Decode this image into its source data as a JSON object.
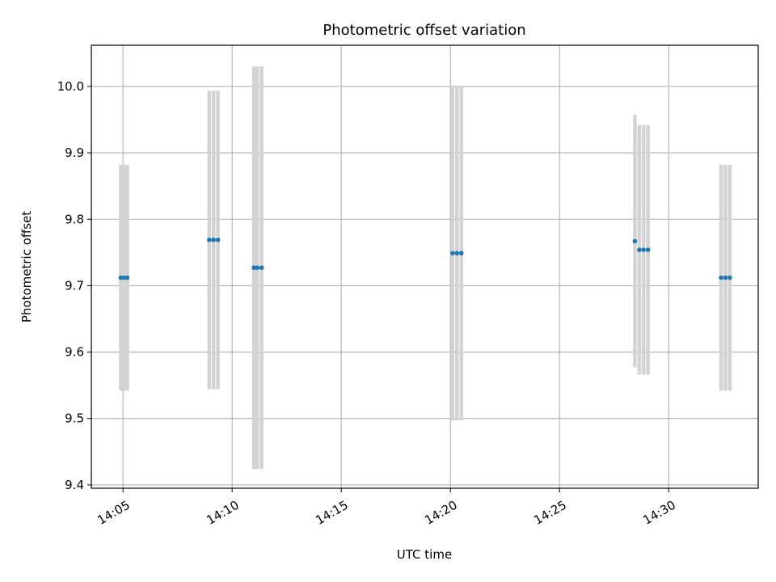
{
  "chart_data": {
    "type": "scatter",
    "title": "Photometric offset variation",
    "xlabel": "UTC time",
    "ylabel": "Photometric offset",
    "x_ticks": [
      "14:05",
      "14:10",
      "14:15",
      "14:20",
      "14:25",
      "14:30"
    ],
    "x_tick_minutes": [
      5,
      10,
      15,
      20,
      25,
      30
    ],
    "y_ticks": [
      "9.4",
      "9.5",
      "9.6",
      "9.7",
      "9.8",
      "9.9",
      "10.0"
    ],
    "y_tick_values": [
      9.4,
      9.5,
      9.6,
      9.7,
      9.8,
      9.9,
      10.0
    ],
    "xlim_minutes_after_14_00": [
      3.55,
      34.1
    ],
    "ylim": [
      9.395,
      10.062
    ],
    "grid": true,
    "marker_color": "#1f77b4",
    "errorbar_color": "#d3d3d3",
    "points": [
      {
        "t_min": 4.9,
        "y": 9.712,
        "err": 0.17
      },
      {
        "t_min": 5.05,
        "y": 9.712,
        "err": 0.17
      },
      {
        "t_min": 5.2,
        "y": 9.712,
        "err": 0.17
      },
      {
        "t_min": 8.95,
        "y": 9.769,
        "err": 0.225
      },
      {
        "t_min": 9.15,
        "y": 9.769,
        "err": 0.225
      },
      {
        "t_min": 9.35,
        "y": 9.769,
        "err": 0.225
      },
      {
        "t_min": 11.0,
        "y": 9.727,
        "err": 0.303
      },
      {
        "t_min": 11.15,
        "y": 9.727,
        "err": 0.303
      },
      {
        "t_min": 11.35,
        "y": 9.727,
        "err": 0.303
      },
      {
        "t_min": 20.1,
        "y": 9.749,
        "err": 0.252
      },
      {
        "t_min": 20.3,
        "y": 9.749,
        "err": 0.252
      },
      {
        "t_min": 20.5,
        "y": 9.749,
        "err": 0.252
      },
      {
        "t_min": 28.45,
        "y": 9.767,
        "err": 0.19
      },
      {
        "t_min": 28.65,
        "y": 9.754,
        "err": 0.188
      },
      {
        "t_min": 28.85,
        "y": 9.754,
        "err": 0.188
      },
      {
        "t_min": 29.05,
        "y": 9.754,
        "err": 0.188
      },
      {
        "t_min": 32.4,
        "y": 9.712,
        "err": 0.17
      },
      {
        "t_min": 32.6,
        "y": 9.712,
        "err": 0.17
      },
      {
        "t_min": 32.8,
        "y": 9.712,
        "err": 0.17
      }
    ]
  }
}
